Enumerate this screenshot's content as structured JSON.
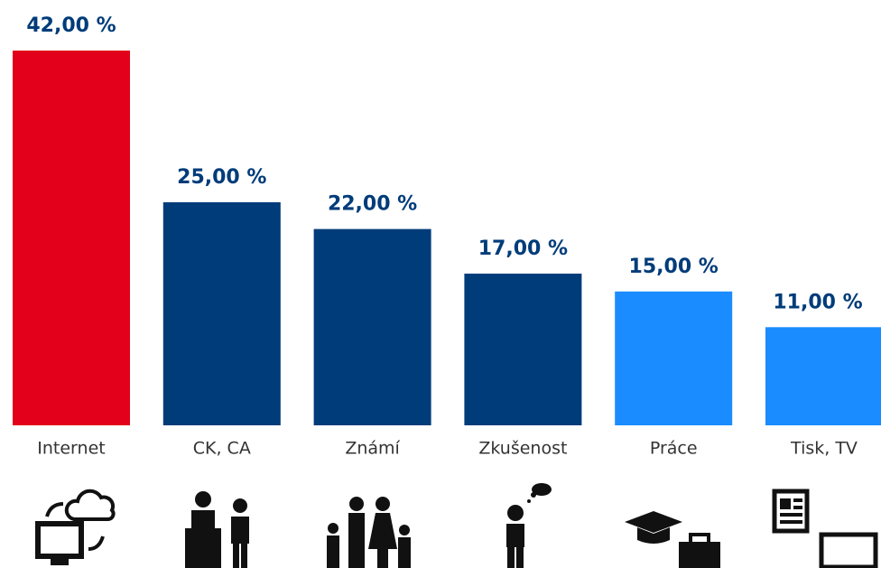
{
  "chart_data": {
    "type": "bar",
    "categories": [
      "Internet",
      "CK, CA",
      "Známí",
      "Zkušenost",
      "Práce",
      "Tisk, TV"
    ],
    "values": [
      42,
      25,
      22,
      17,
      15,
      11
    ],
    "value_labels": [
      "42,00 %",
      "25,00 %",
      "22,00 %",
      "17,00 %",
      "15,00 %",
      "11,00 %"
    ],
    "colors": [
      "#e2001a",
      "#003c7a",
      "#003c7a",
      "#003c7a",
      "#1a8cff",
      "#1a8cff"
    ],
    "ylim": [
      0,
      42
    ]
  }
}
